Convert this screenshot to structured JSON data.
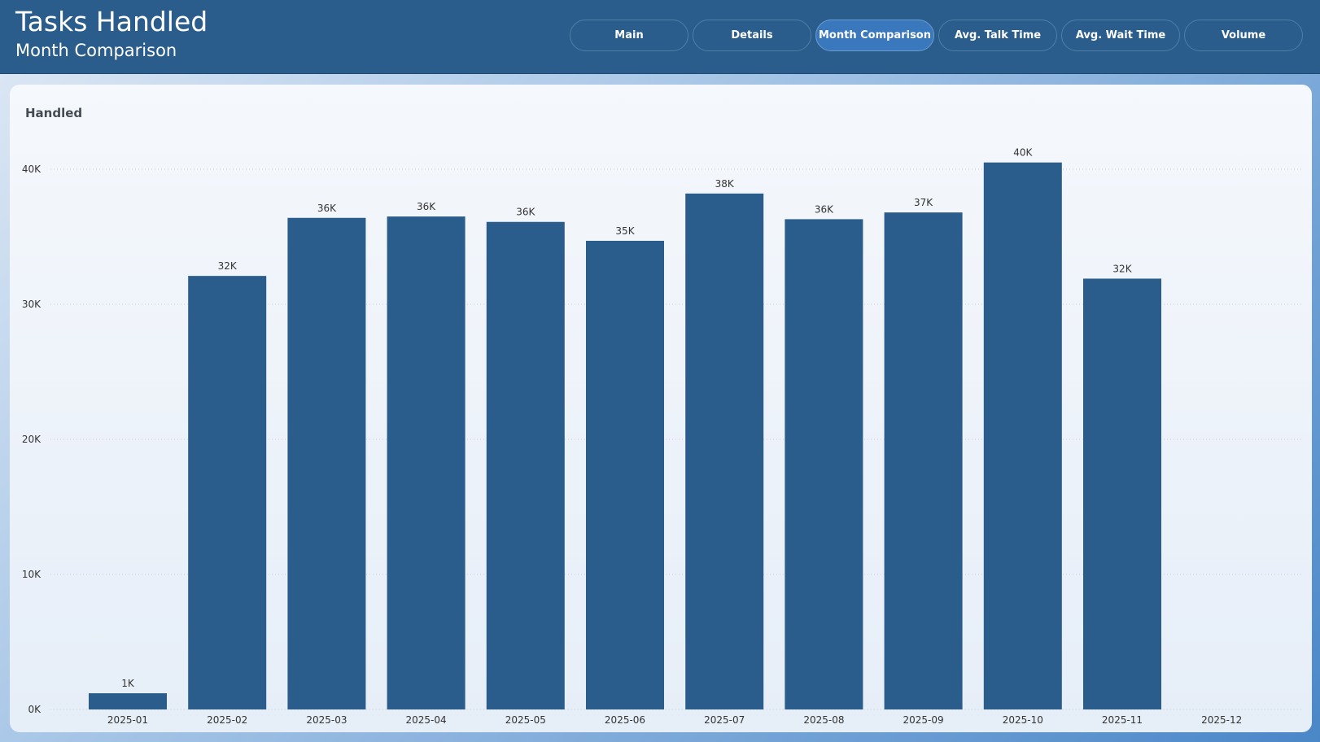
{
  "header": {
    "title": "Tasks Handled",
    "subtitle": "Month Comparison",
    "nav": [
      {
        "label": "Main",
        "active": false
      },
      {
        "label": "Details",
        "active": false
      },
      {
        "label": "Month Comparison",
        "active": true
      },
      {
        "label": "Avg. Talk Time",
        "active": false
      },
      {
        "label": "Avg. Wait Time",
        "active": false
      },
      {
        "label": "Volume",
        "active": false
      }
    ]
  },
  "colors": {
    "header_bg": "#2a5d8c",
    "bar": "#2a5d8c",
    "active_nav": "#3a78bd"
  },
  "chart_data": {
    "type": "bar",
    "title": "Handled",
    "categories": [
      "2025-01",
      "2025-02",
      "2025-03",
      "2025-04",
      "2025-05",
      "2025-06",
      "2025-07",
      "2025-08",
      "2025-09",
      "2025-10",
      "2025-11",
      "2025-12"
    ],
    "values": [
      1200,
      32100,
      36400,
      36500,
      36100,
      34700,
      38200,
      36300,
      36800,
      40500,
      31900,
      null
    ],
    "data_labels": [
      "1K",
      "32K",
      "36K",
      "36K",
      "36K",
      "35K",
      "38K",
      "36K",
      "37K",
      "40K",
      "32K",
      ""
    ],
    "yticks": [
      0,
      10000,
      20000,
      30000,
      40000
    ],
    "ytick_labels": [
      "0K",
      "10K",
      "20K",
      "30K",
      "40K"
    ],
    "ylim": [
      0,
      40000
    ],
    "grid": true,
    "legend": "none"
  }
}
